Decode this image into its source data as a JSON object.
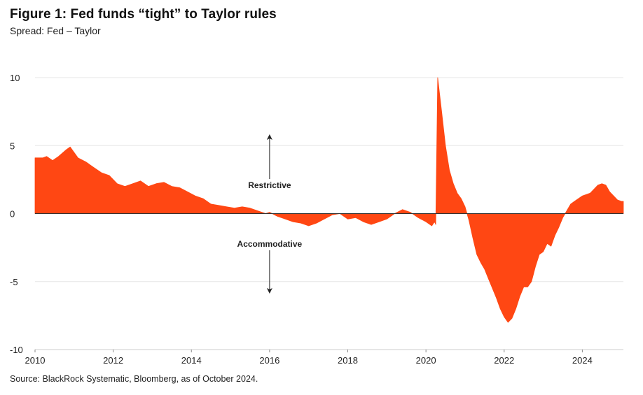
{
  "title": "Figure 1: Fed funds “tight” to Taylor rules",
  "subtitle": "Spread: Fed – Taylor",
  "source": "Source: BlackRock Systematic, Bloomberg, as of October 2024.",
  "colors": {
    "fill": "#ff4713",
    "grid": "#e6e6e6",
    "zero": "#333333",
    "arrow": "#222222"
  },
  "chart_data": {
    "type": "area",
    "x_axis": {
      "ticks": [
        2010,
        2012,
        2014,
        2016,
        2018,
        2020,
        2022,
        2024
      ],
      "labels": [
        "2010",
        "2012",
        "2014",
        "2016",
        "2018",
        "2020",
        "2022",
        "2024"
      ],
      "range": [
        2010,
        2025.05
      ]
    },
    "y_axis": {
      "ticks": [
        -10,
        -5,
        0,
        5,
        10
      ],
      "labels": [
        "-10",
        "-5",
        "0",
        "5",
        "10"
      ],
      "range": [
        -10,
        10
      ]
    },
    "grid": true,
    "annotations": [
      {
        "text": "Restrictive",
        "direction": "up"
      },
      {
        "text": "Accommodative",
        "direction": "down"
      }
    ],
    "x": [
      2010.0,
      2010.2,
      2010.3,
      2010.45,
      2010.6,
      2010.8,
      2010.9,
      2011.1,
      2011.3,
      2011.5,
      2011.7,
      2011.9,
      2012.1,
      2012.3,
      2012.5,
      2012.7,
      2012.9,
      2013.1,
      2013.3,
      2013.5,
      2013.7,
      2013.9,
      2014.1,
      2014.3,
      2014.5,
      2014.7,
      2014.9,
      2015.1,
      2015.3,
      2015.5,
      2015.7,
      2015.9,
      2016.0,
      2016.2,
      2016.4,
      2016.6,
      2016.8,
      2017.0,
      2017.2,
      2017.4,
      2017.6,
      2017.8,
      2018.0,
      2018.2,
      2018.4,
      2018.6,
      2018.8,
      2019.0,
      2019.2,
      2019.4,
      2019.6,
      2019.8,
      2020.0,
      2020.15,
      2020.22,
      2020.25,
      2020.3,
      2020.4,
      2020.5,
      2020.6,
      2020.7,
      2020.8,
      2020.9,
      2021.0,
      2021.1,
      2021.2,
      2021.3,
      2021.4,
      2021.5,
      2021.6,
      2021.7,
      2021.8,
      2021.9,
      2022.0,
      2022.1,
      2022.2,
      2022.3,
      2022.4,
      2022.5,
      2022.6,
      2022.7,
      2022.8,
      2022.9,
      2023.0,
      2023.1,
      2023.2,
      2023.3,
      2023.4,
      2023.5,
      2023.6,
      2023.7,
      2023.8,
      2023.9,
      2024.0,
      2024.1,
      2024.2,
      2024.3,
      2024.4,
      2024.5,
      2024.6,
      2024.7,
      2024.8,
      2024.9,
      2025.0,
      2025.05
    ],
    "y": [
      4.1,
      4.1,
      4.2,
      3.9,
      4.2,
      4.7,
      4.9,
      4.1,
      3.8,
      3.4,
      3.0,
      2.8,
      2.2,
      2.0,
      2.2,
      2.4,
      2.0,
      2.2,
      2.3,
      2.0,
      1.9,
      1.6,
      1.3,
      1.1,
      0.7,
      0.6,
      0.5,
      0.4,
      0.5,
      0.4,
      0.2,
      0.0,
      0.1,
      -0.2,
      -0.4,
      -0.6,
      -0.7,
      -0.9,
      -0.7,
      -0.4,
      -0.1,
      0.0,
      -0.4,
      -0.3,
      -0.6,
      -0.8,
      -0.6,
      -0.4,
      0.0,
      0.3,
      0.1,
      -0.3,
      -0.6,
      -0.9,
      -0.6,
      -0.8,
      10.0,
      7.5,
      5.0,
      3.2,
      2.2,
      1.5,
      1.1,
      0.5,
      -0.5,
      -1.8,
      -3.0,
      -3.6,
      -4.1,
      -4.8,
      -5.5,
      -6.2,
      -7.0,
      -7.6,
      -8.0,
      -7.7,
      -7.0,
      -6.1,
      -5.4,
      -5.4,
      -5.0,
      -3.9,
      -3.0,
      -2.8,
      -2.2,
      -2.4,
      -1.6,
      -1.0,
      -0.3,
      0.2,
      0.7,
      0.9,
      1.1,
      1.3,
      1.4,
      1.5,
      1.8,
      2.1,
      2.2,
      2.1,
      1.6,
      1.3,
      1.0,
      0.9,
      0.9
    ]
  }
}
